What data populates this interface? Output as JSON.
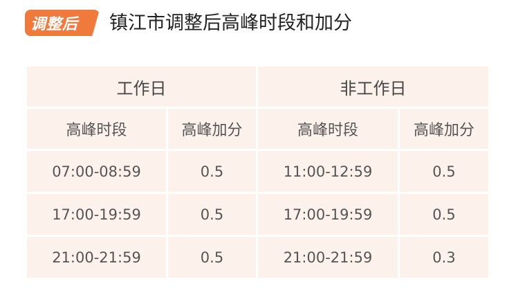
{
  "header": {
    "badge": "调整后",
    "title": "镇江市调整后高峰时段和加分"
  },
  "colors": {
    "badge": "#f07a3c",
    "table_bg": "#fdf1eb"
  },
  "table": {
    "groups": [
      "工作日",
      "非工作日"
    ],
    "columns": [
      "高峰时段",
      "高峰加分",
      "高峰时段",
      "高峰加分"
    ],
    "rows": [
      [
        "07:00-08:59",
        "0.5",
        "11:00-12:59",
        "0.5"
      ],
      [
        "17:00-19:59",
        "0.5",
        "17:00-19:59",
        "0.5"
      ],
      [
        "21:00-21:59",
        "0.5",
        "21:00-21:59",
        "0.3"
      ]
    ]
  }
}
